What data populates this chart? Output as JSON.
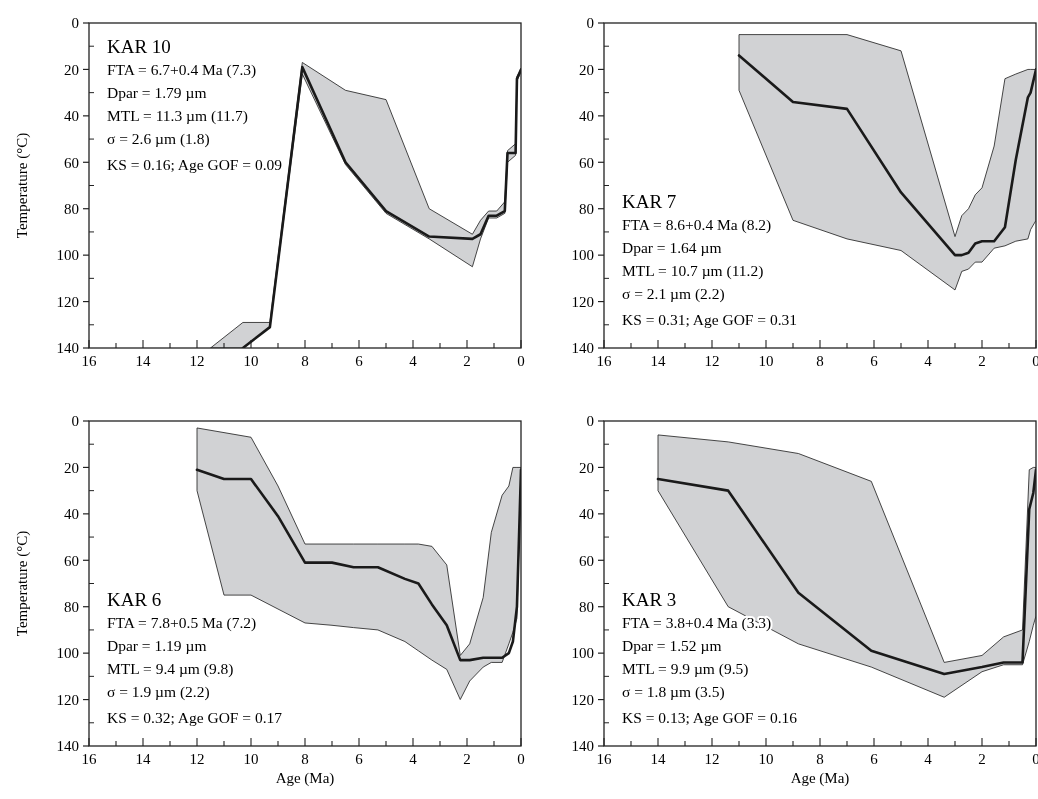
{
  "chart_data": [
    {
      "type": "line",
      "title": "KAR 10",
      "ylabel": "Temperature (°C)",
      "annotations": [
        "FTA = 6.7+0.4 Ma (7.3)",
        "Dpar = 1.79 µm",
        "MTL = 11.3 µm (11.7)",
        "σ = 2.6 µm (1.8)",
        "KS = 0.16; Age GOF = 0.09"
      ],
      "xlim": [
        16,
        0
      ],
      "ylim": [
        140,
        0
      ],
      "xticks": [
        16,
        {
          "value": 15,
          "label": null
        },
        14,
        {
          "value": 13,
          "label": null
        },
        12,
        {
          "value": 11,
          "label": null
        },
        10,
        {
          "value": 9,
          "label": null
        },
        8,
        {
          "value": 7,
          "label": null
        },
        6,
        {
          "value": 5,
          "label": null
        },
        4,
        {
          "value": 3,
          "label": null
        },
        2,
        {
          "value": 1,
          "label": null
        },
        0
      ],
      "yticks": [
        0,
        {
          "value": 10,
          "label": null
        },
        20,
        {
          "value": 30,
          "label": null
        },
        40,
        {
          "value": 50,
          "label": null
        },
        60,
        {
          "value": 70,
          "label": null
        },
        80,
        {
          "value": 90,
          "label": null
        },
        100,
        {
          "value": 110,
          "label": null
        },
        120,
        {
          "value": 130,
          "label": null
        },
        140
      ],
      "x": [
        11.5,
        10.3,
        9.3,
        8.1,
        6.5,
        5.0,
        3.4,
        1.8,
        1.5,
        1.2,
        0.9,
        0.6,
        0.5,
        0.2,
        0.15,
        0
      ],
      "series": [
        {
          "color": "#1a1a1a",
          "values": [
            null,
            140,
            131,
            19,
            60,
            81,
            92,
            93,
            91,
            83,
            83,
            81,
            56,
            56,
            24,
            20
          ],
          "upper": [
            140,
            129,
            129,
            17,
            29,
            33,
            80,
            91,
            85,
            81,
            81,
            77,
            55,
            52,
            23,
            20
          ],
          "lower": [
            140,
            140,
            131,
            22,
            61,
            82,
            93,
            105,
            93,
            84,
            84,
            82,
            60,
            57,
            25,
            21
          ]
        }
      ]
    },
    {
      "type": "line",
      "title": "KAR 7",
      "annotations": [
        "FTA = 8.6+0.4 Ma (8.2)",
        "Dpar = 1.64 µm",
        "MTL = 10.7 µm (11.2)",
        "σ = 2.1 µm (2.2)",
        "KS = 0.31; Age GOF = 0.31"
      ],
      "xlim": [
        16,
        0
      ],
      "ylim": [
        140,
        0
      ],
      "xticks": [
        16,
        {
          "value": 15,
          "label": null
        },
        14,
        {
          "value": 13,
          "label": null
        },
        12,
        {
          "value": 11,
          "label": null
        },
        10,
        {
          "value": 9,
          "label": null
        },
        8,
        {
          "value": 7,
          "label": null
        },
        6,
        {
          "value": 5,
          "label": null
        },
        4,
        {
          "value": 3,
          "label": null
        },
        2,
        {
          "value": 1,
          "label": null
        },
        0
      ],
      "yticks": [
        0,
        {
          "value": 10,
          "label": null
        },
        20,
        {
          "value": 30,
          "label": null
        },
        40,
        {
          "value": 50,
          "label": null
        },
        60,
        {
          "value": 70,
          "label": null
        },
        80,
        {
          "value": 90,
          "label": null
        },
        100,
        {
          "value": 110,
          "label": null
        },
        120,
        {
          "value": 130,
          "label": null
        },
        140
      ],
      "x": [
        11.0,
        9.0,
        7.0,
        5.0,
        3.0,
        2.75,
        2.5,
        2.25,
        2.0,
        1.55,
        1.15,
        0.75,
        0.3,
        0.2,
        0
      ],
      "series": [
        {
          "color": "#1a1a1a",
          "values": [
            14,
            34,
            37,
            73,
            100,
            100,
            99,
            95,
            94,
            94,
            88,
            59,
            32,
            30,
            20
          ],
          "upper": [
            5,
            5,
            5,
            12,
            92,
            83,
            80,
            74,
            71,
            53,
            24,
            22,
            20,
            20,
            20
          ],
          "lower": [
            29,
            85,
            93,
            98,
            115,
            107,
            106,
            103,
            103,
            97,
            96,
            94,
            93,
            89,
            85
          ]
        }
      ]
    },
    {
      "type": "line",
      "title": "KAR 6",
      "xlabel": "Age (Ma)",
      "ylabel": "Temperature (°C)",
      "annotations": [
        "FTA = 7.8+0.5 Ma (7.2)",
        "Dpar = 1.19 µm",
        "MTL = 9.4 µm (9.8)",
        "σ = 1.9 µm (2.2)",
        "KS = 0.32; Age GOF = 0.17"
      ],
      "xlim": [
        16,
        0
      ],
      "ylim": [
        140,
        0
      ],
      "xticks": [
        16,
        {
          "value": 15,
          "label": null
        },
        14,
        {
          "value": 13,
          "label": null
        },
        12,
        {
          "value": 11,
          "label": null
        },
        10,
        {
          "value": 9,
          "label": null
        },
        8,
        {
          "value": 7,
          "label": null
        },
        6,
        {
          "value": 5,
          "label": null
        },
        4,
        {
          "value": 3,
          "label": null
        },
        2,
        {
          "value": 1,
          "label": null
        },
        0
      ],
      "yticks": [
        0,
        {
          "value": 10,
          "label": null
        },
        20,
        {
          "value": 30,
          "label": null
        },
        40,
        {
          "value": 50,
          "label": null
        },
        60,
        {
          "value": 70,
          "label": null
        },
        80,
        {
          "value": 90,
          "label": null
        },
        100,
        {
          "value": 110,
          "label": null
        },
        120,
        {
          "value": 130,
          "label": null
        },
        140
      ],
      "x": [
        12.0,
        11.0,
        10.0,
        9.0,
        8.0,
        7.0,
        6.2,
        5.3,
        4.3,
        3.8,
        3.3,
        2.75,
        2.25,
        1.9,
        1.4,
        1.1,
        0.7,
        0.45,
        0.3,
        0.15,
        0
      ],
      "series": [
        {
          "color": "#1a1a1a",
          "values": [
            21,
            25,
            25,
            41,
            61,
            61,
            63,
            63,
            68,
            70,
            79,
            88,
            103,
            103,
            102,
            102,
            102,
            100,
            95,
            80,
            21
          ],
          "upper": [
            3,
            5,
            7,
            28,
            53,
            53,
            53,
            53,
            53,
            53,
            54,
            62,
            101,
            96,
            76,
            48,
            32,
            28,
            20,
            20,
            20
          ],
          "lower": [
            30,
            75,
            75,
            81,
            87,
            88,
            89,
            90,
            95,
            99,
            103,
            107,
            120,
            112,
            106,
            104,
            104,
            96,
            91,
            85,
            20
          ]
        }
      ]
    },
    {
      "type": "line",
      "title": "KAR 3",
      "xlabel": "Age (Ma)",
      "annotations": [
        "FTA = 3.8+0.4 Ma (3.3)",
        "Dpar = 1.52 µm",
        "MTL = 9.9 µm (9.5)",
        "σ = 1.8 µm (3.5)",
        "KS = 0.13; Age GOF = 0.16"
      ],
      "xlim": [
        16,
        0
      ],
      "ylim": [
        140,
        0
      ],
      "xticks": [
        16,
        {
          "value": 15,
          "label": null
        },
        14,
        {
          "value": 13,
          "label": null
        },
        12,
        {
          "value": 11,
          "label": null
        },
        10,
        {
          "value": 9,
          "label": null
        },
        8,
        {
          "value": 7,
          "label": null
        },
        6,
        {
          "value": 5,
          "label": null
        },
        4,
        {
          "value": 3,
          "label": null
        },
        2,
        {
          "value": 1,
          "label": null
        },
        0
      ],
      "yticks": [
        0,
        {
          "value": 10,
          "label": null
        },
        20,
        {
          "value": 30,
          "label": null
        },
        40,
        {
          "value": 50,
          "label": null
        },
        60,
        {
          "value": 70,
          "label": null
        },
        80,
        {
          "value": 90,
          "label": null
        },
        100,
        {
          "value": 110,
          "label": null
        },
        120,
        {
          "value": 130,
          "label": null
        },
        140
      ],
      "x": [
        14.0,
        11.4,
        8.8,
        6.1,
        3.4,
        2.0,
        1.2,
        0.5,
        0.25,
        0.1,
        0
      ],
      "series": [
        {
          "color": "#1a1a1a",
          "values": [
            25,
            30,
            74,
            99,
            109,
            106,
            104,
            104,
            38,
            31,
            21
          ],
          "upper": [
            6,
            9,
            14,
            26,
            104,
            101,
            93,
            90,
            21,
            20,
            20
          ],
          "lower": [
            30,
            80,
            96,
            106,
            119,
            108,
            105,
            105,
            95,
            88,
            84
          ]
        }
      ]
    }
  ]
}
